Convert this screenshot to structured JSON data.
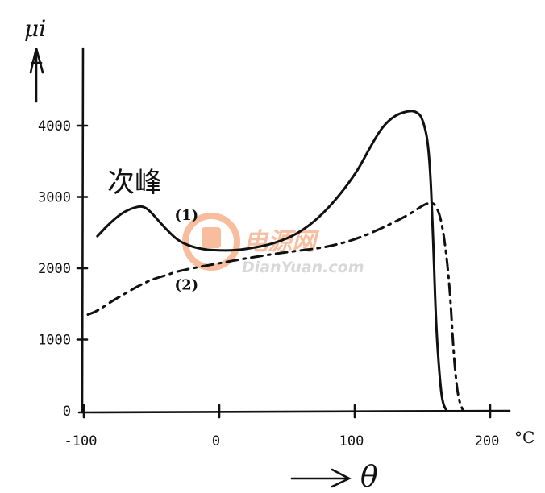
{
  "chart_data": {
    "type": "line",
    "ylabel": "μi",
    "xlabel": "θ",
    "x_unit": "°C",
    "annotation": "次峰",
    "xlim": [
      -100,
      200
    ],
    "ylim": [
      0,
      4800
    ],
    "x_ticks": [
      "-100",
      "0",
      "100",
      "200"
    ],
    "y_ticks": [
      "0",
      "1000",
      "2000",
      "3000",
      "4000"
    ],
    "x_tick_values": [
      -100,
      0,
      100,
      200
    ],
    "y_tick_values": [
      0,
      1000,
      2000,
      3000,
      4000
    ],
    "series": [
      {
        "name": "(1)",
        "x": [
          -90,
          -80,
          -70,
          -60,
          -55,
          -50,
          -40,
          -30,
          -20,
          -10,
          0,
          10,
          20,
          40,
          60,
          80,
          100,
          110,
          120,
          130,
          140,
          145,
          150,
          155,
          158,
          160,
          163,
          165,
          168
        ],
        "y": [
          2450,
          2650,
          2800,
          2870,
          2860,
          2780,
          2560,
          2380,
          2300,
          2260,
          2250,
          2250,
          2270,
          2340,
          2500,
          2820,
          3300,
          3650,
          3980,
          4150,
          4210,
          4200,
          4120,
          3700,
          2400,
          1200,
          400,
          100,
          0
        ]
      },
      {
        "name": "(2)",
        "x": [
          -97,
          -90,
          -80,
          -70,
          -60,
          -50,
          -40,
          -30,
          -20,
          0,
          20,
          40,
          60,
          80,
          100,
          120,
          140,
          150,
          155,
          160,
          165,
          170,
          173,
          176,
          180
        ],
        "y": [
          1350,
          1400,
          1530,
          1640,
          1750,
          1840,
          1900,
          1960,
          2000,
          2070,
          2140,
          2200,
          2250,
          2300,
          2400,
          2560,
          2750,
          2880,
          2920,
          2900,
          2600,
          1800,
          800,
          200,
          0
        ]
      }
    ]
  },
  "watermark": {
    "cn": "电源网",
    "en": "DianYuan.com"
  }
}
